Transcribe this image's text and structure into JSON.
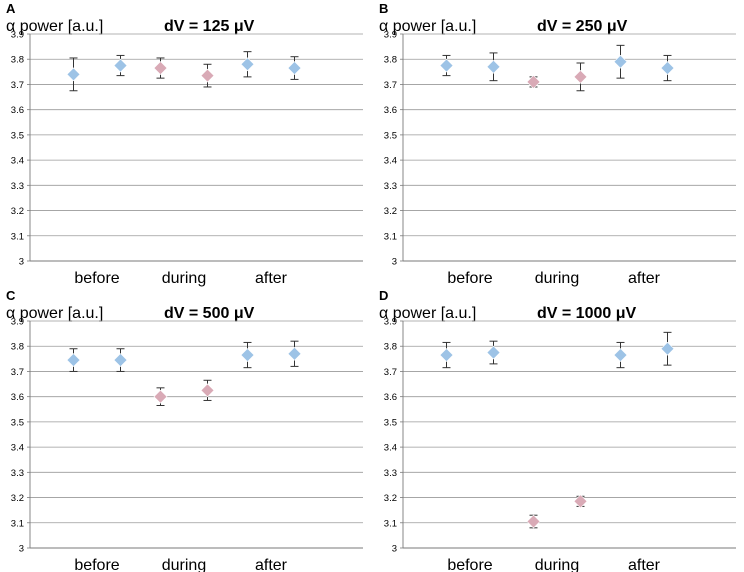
{
  "chart_data": [
    {
      "type": "scatter",
      "panel": "A",
      "ylabel": "α power [a.u.]",
      "title": "dV = 125 μV",
      "categories": [
        "before",
        "during",
        "after"
      ],
      "ylim": [
        3,
        3.9
      ],
      "yticks": [
        "3",
        "3.1",
        "3.2",
        "3.3",
        "3.4",
        "3.5",
        "3.6",
        "3.7",
        "3.8",
        "3.9"
      ],
      "grid": true,
      "points": [
        {
          "group": "before",
          "y": 3.74,
          "err": 0.065,
          "marker": "diamond",
          "color": "#9dc3e6"
        },
        {
          "group": "before",
          "y": 3.775,
          "err": 0.04,
          "marker": "diamond",
          "color": "#9dc3e6"
        },
        {
          "group": "during",
          "y": 3.765,
          "err": 0.04,
          "marker": "diamond",
          "color": "#d9aab6"
        },
        {
          "group": "during",
          "y": 3.735,
          "err": 0.045,
          "marker": "diamond",
          "color": "#d9aab6"
        },
        {
          "group": "after",
          "y": 3.78,
          "err": 0.05,
          "marker": "diamond",
          "color": "#9dc3e6"
        },
        {
          "group": "after",
          "y": 3.765,
          "err": 0.045,
          "marker": "diamond",
          "color": "#9dc3e6"
        }
      ]
    },
    {
      "type": "scatter",
      "panel": "B",
      "ylabel": "α power [a.u.]",
      "title": "dV = 250 μV",
      "categories": [
        "before",
        "during",
        "after"
      ],
      "ylim": [
        3,
        3.9
      ],
      "yticks": [
        "3",
        "3.1",
        "3.2",
        "3.3",
        "3.4",
        "3.5",
        "3.6",
        "3.7",
        "3.8",
        "3.9"
      ],
      "grid": true,
      "points": [
        {
          "group": "before",
          "y": 3.775,
          "err": 0.04,
          "marker": "diamond",
          "color": "#9dc3e6"
        },
        {
          "group": "before",
          "y": 3.77,
          "err": 0.055,
          "marker": "diamond",
          "color": "#9dc3e6"
        },
        {
          "group": "during",
          "y": 3.71,
          "err": 0.02,
          "marker": "diamond",
          "color": "#d9aab6"
        },
        {
          "group": "during",
          "y": 3.73,
          "err": 0.055,
          "marker": "diamond",
          "color": "#d9aab6"
        },
        {
          "group": "after",
          "y": 3.79,
          "err": 0.065,
          "marker": "diamond",
          "color": "#9dc3e6"
        },
        {
          "group": "after",
          "y": 3.765,
          "err": 0.05,
          "marker": "diamond",
          "color": "#9dc3e6"
        }
      ]
    },
    {
      "type": "scatter",
      "panel": "C",
      "ylabel": "α power [a.u.]",
      "title": "dV = 500 μV",
      "categories": [
        "before",
        "during",
        "after"
      ],
      "ylim": [
        3,
        3.9
      ],
      "yticks": [
        "3",
        "3.1",
        "3.2",
        "3.3",
        "3.4",
        "3.5",
        "3.6",
        "3.7",
        "3.8",
        "3.9"
      ],
      "grid": true,
      "points": [
        {
          "group": "before",
          "y": 3.745,
          "err": 0.045,
          "marker": "diamond",
          "color": "#9dc3e6"
        },
        {
          "group": "before",
          "y": 3.745,
          "err": 0.045,
          "marker": "diamond",
          "color": "#9dc3e6"
        },
        {
          "group": "during",
          "y": 3.6,
          "err": 0.035,
          "marker": "diamond",
          "color": "#d9aab6"
        },
        {
          "group": "during",
          "y": 3.625,
          "err": 0.04,
          "marker": "diamond",
          "color": "#d9aab6"
        },
        {
          "group": "after",
          "y": 3.765,
          "err": 0.05,
          "marker": "diamond",
          "color": "#9dc3e6"
        },
        {
          "group": "after",
          "y": 3.77,
          "err": 0.05,
          "marker": "diamond",
          "color": "#9dc3e6"
        }
      ]
    },
    {
      "type": "scatter",
      "panel": "D",
      "ylabel": "α power [a.u.]",
      "title": "dV = 1000 μV",
      "categories": [
        "before",
        "during",
        "after"
      ],
      "ylim": [
        3,
        3.9
      ],
      "yticks": [
        "3",
        "3.1",
        "3.2",
        "3.3",
        "3.4",
        "3.5",
        "3.6",
        "3.7",
        "3.8",
        "3.9"
      ],
      "grid": true,
      "points": [
        {
          "group": "before",
          "y": 3.765,
          "err": 0.05,
          "marker": "diamond",
          "color": "#9dc3e6"
        },
        {
          "group": "before",
          "y": 3.775,
          "err": 0.045,
          "marker": "diamond",
          "color": "#9dc3e6"
        },
        {
          "group": "during",
          "y": 3.105,
          "err": 0.025,
          "marker": "diamond",
          "color": "#d9aab6"
        },
        {
          "group": "during",
          "y": 3.185,
          "err": 0.02,
          "marker": "diamond",
          "color": "#d9aab6"
        },
        {
          "group": "after",
          "y": 3.765,
          "err": 0.05,
          "marker": "diamond",
          "color": "#9dc3e6"
        },
        {
          "group": "after",
          "y": 3.79,
          "err": 0.065,
          "marker": "diamond",
          "color": "#9dc3e6"
        }
      ]
    }
  ]
}
